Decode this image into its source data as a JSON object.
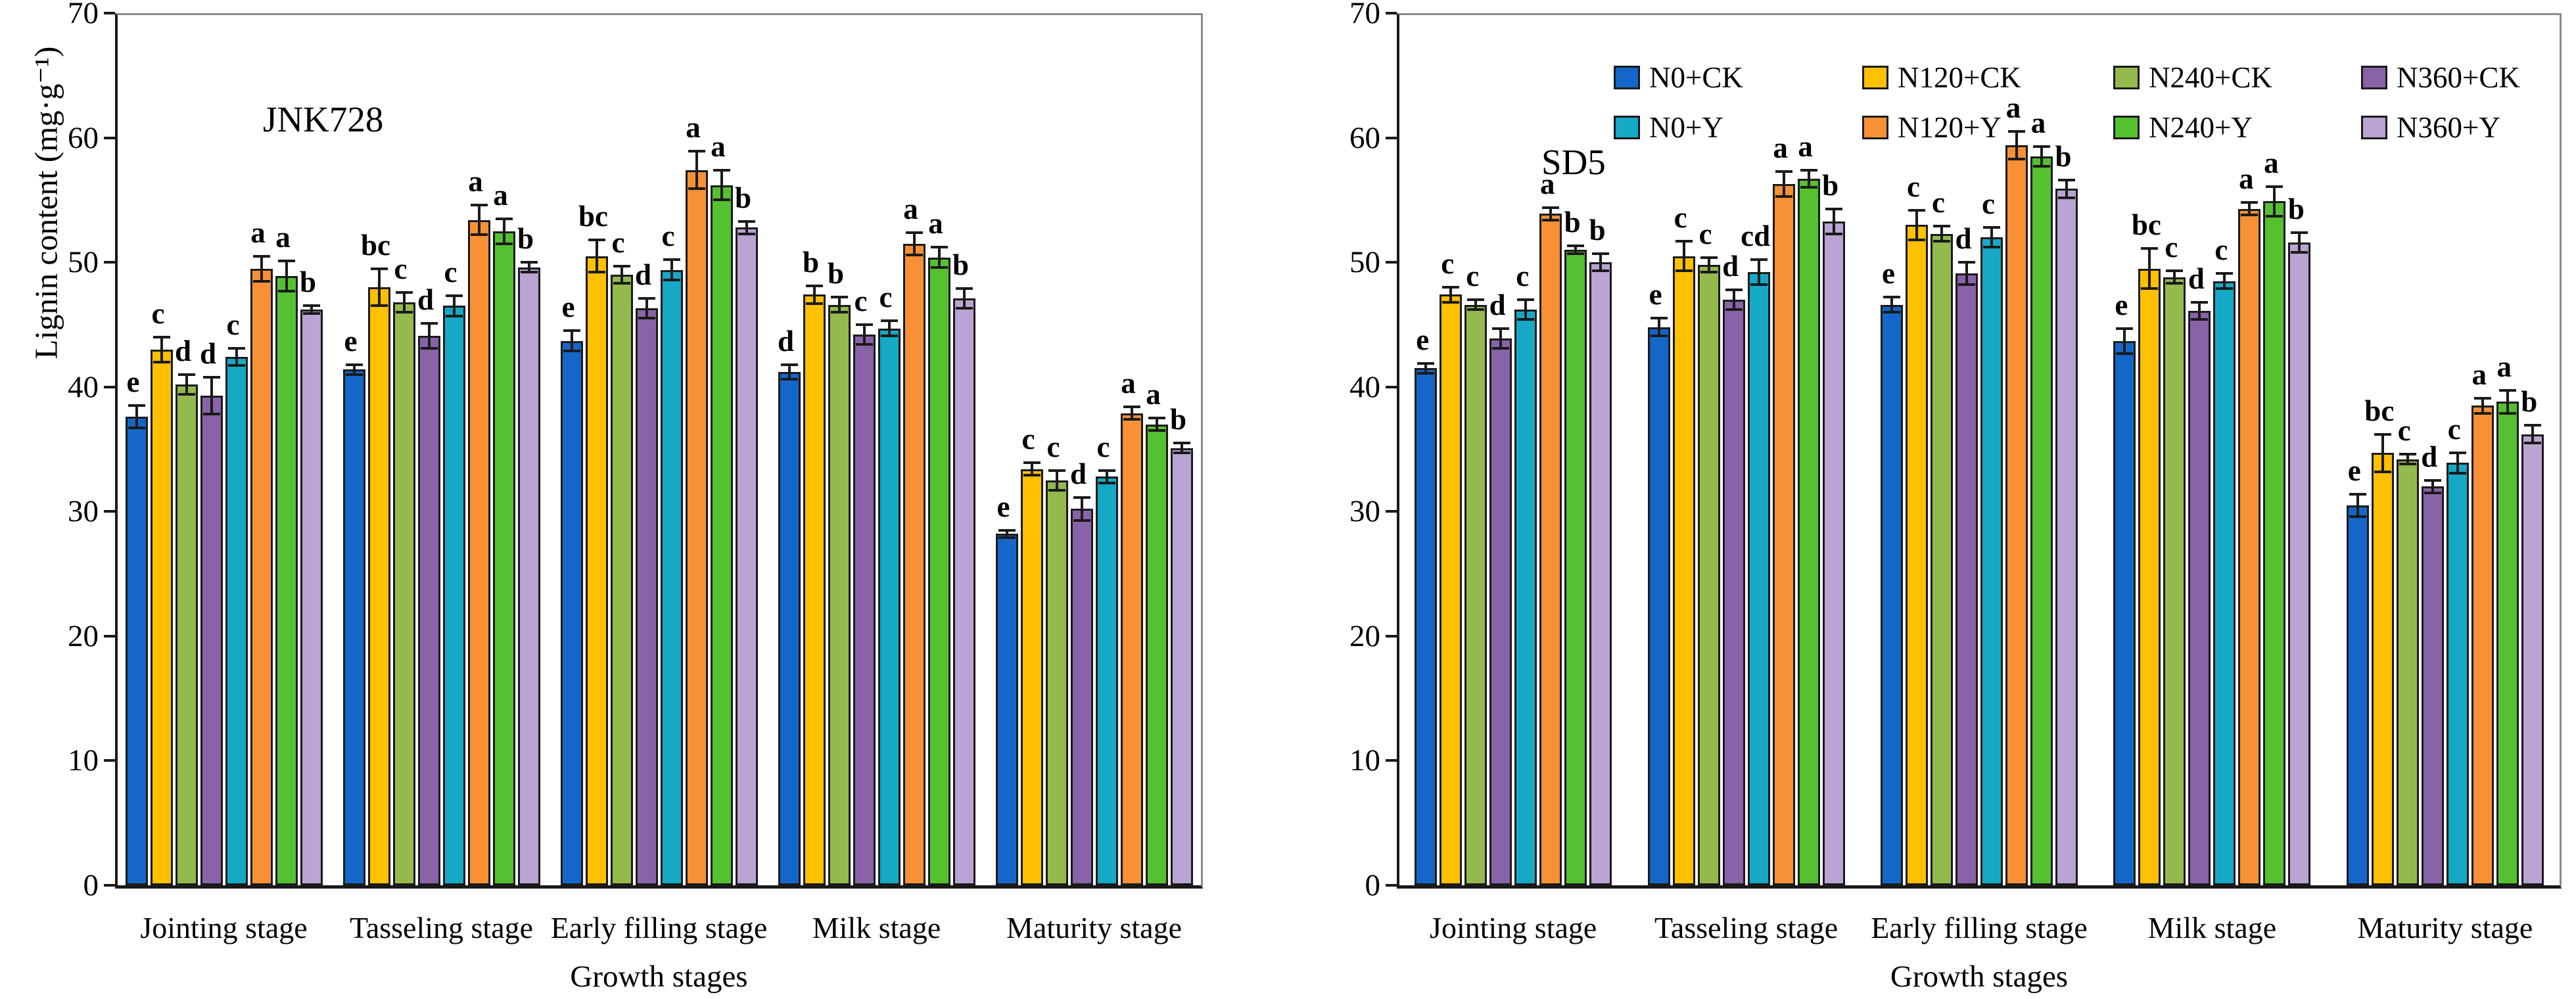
{
  "figure": {
    "background": "#FFFFFF",
    "frame_color": "#8A8A8A",
    "axis_color": "#1A1A1A"
  },
  "series_defs": [
    {
      "name": "N0+CK",
      "color": "#1467C8"
    },
    {
      "name": "N120+CK",
      "color": "#FFC000"
    },
    {
      "name": "N240+CK",
      "color": "#94BA4E"
    },
    {
      "name": "N360+CK",
      "color": "#8963A8"
    },
    {
      "name": "N0+Y",
      "color": "#15A9C6"
    },
    {
      "name": "N120+Y",
      "color": "#F89135"
    },
    {
      "name": "N240+Y",
      "color": "#55C131"
    },
    {
      "name": "N360+Y",
      "color": "#B9A4D4"
    }
  ],
  "chart_data": [
    {
      "type": "bar",
      "title": "JNK728",
      "xlabel": "Growth stages",
      "ylabel": "Lignin content (mg·g⁻¹)",
      "ylim": [
        0,
        70
      ],
      "yticks": [
        0,
        10,
        20,
        30,
        40,
        50,
        60,
        70
      ],
      "legend_position": "none",
      "grid": false,
      "categories": [
        "Jointing stage",
        "Tasseling stage",
        "Early filling stage",
        "Milk stage",
        "Maturity stage"
      ],
      "series": [
        {
          "name": "N0+CK",
          "color": "#1467C8",
          "values": [
            37.6,
            41.4,
            43.7,
            41.2,
            28.2
          ],
          "errors": [
            0.9,
            0.4,
            0.8,
            0.6,
            0.3
          ],
          "letters": [
            "e",
            "e",
            "e",
            "d",
            "e"
          ]
        },
        {
          "name": "N120+CK",
          "color": "#FFC000",
          "values": [
            43.0,
            48.0,
            50.5,
            47.4,
            33.4
          ],
          "errors": [
            1.0,
            1.5,
            1.3,
            0.7,
            0.5
          ],
          "letters": [
            "c",
            "bc",
            "bc",
            "b",
            "c"
          ]
        },
        {
          "name": "N240+CK",
          "color": "#94BA4E",
          "values": [
            40.2,
            46.8,
            49.0,
            46.6,
            32.5
          ],
          "errors": [
            0.8,
            0.8,
            0.7,
            0.6,
            0.8
          ],
          "letters": [
            "d",
            "c",
            "c",
            "b",
            "c"
          ]
        },
        {
          "name": "N360+CK",
          "color": "#8963A8",
          "values": [
            39.3,
            44.1,
            46.3,
            44.2,
            30.2
          ],
          "errors": [
            1.5,
            1.0,
            0.8,
            0.8,
            0.9
          ],
          "letters": [
            "d",
            "d",
            "d",
            "c",
            "d"
          ]
        },
        {
          "name": "N0+Y",
          "color": "#15A9C6",
          "values": [
            42.4,
            46.5,
            49.4,
            44.7,
            32.8
          ],
          "errors": [
            0.7,
            0.8,
            0.8,
            0.6,
            0.5
          ],
          "letters": [
            "c",
            "c",
            "c",
            "c",
            "c"
          ]
        },
        {
          "name": "N120+Y",
          "color": "#F89135",
          "values": [
            49.5,
            53.4,
            57.4,
            51.5,
            37.9
          ],
          "errors": [
            1.0,
            1.2,
            1.5,
            0.9,
            0.5
          ],
          "letters": [
            "a",
            "a",
            "a",
            "a",
            "a"
          ]
        },
        {
          "name": "N240+Y",
          "color": "#55C131",
          "values": [
            48.9,
            52.5,
            56.2,
            50.4,
            37.0
          ],
          "errors": [
            1.2,
            1.0,
            1.2,
            0.8,
            0.5
          ],
          "letters": [
            "a",
            "a",
            "a",
            "a",
            "a"
          ]
        },
        {
          "name": "N360+Y",
          "color": "#B9A4D4",
          "values": [
            46.2,
            49.6,
            52.8,
            47.1,
            35.1
          ],
          "errors": [
            0.3,
            0.4,
            0.5,
            0.8,
            0.4
          ],
          "letters": [
            "b",
            "b",
            "b",
            "b",
            "b"
          ]
        }
      ]
    },
    {
      "type": "bar",
      "title": "SD5",
      "xlabel": "Growth stages",
      "ylabel": "",
      "ylim": [
        0,
        70
      ],
      "yticks": [
        0,
        10,
        20,
        30,
        40,
        50,
        60,
        70
      ],
      "legend_position": "top-inside",
      "grid": false,
      "categories": [
        "Jointing stage",
        "Tasseling stage",
        "Early filling stage",
        "Milk stage",
        "Maturity stage"
      ],
      "series": [
        {
          "name": "N0+CK",
          "color": "#1467C8",
          "values": [
            41.5,
            44.8,
            46.6,
            43.7,
            30.5
          ],
          "errors": [
            0.4,
            0.7,
            0.6,
            1.0,
            0.9
          ],
          "letters": [
            "e",
            "e",
            "e",
            "e",
            "e"
          ]
        },
        {
          "name": "N120+CK",
          "color": "#FFC000",
          "values": [
            47.4,
            50.5,
            53.0,
            49.5,
            34.7
          ],
          "errors": [
            0.6,
            1.2,
            1.2,
            1.6,
            1.5
          ],
          "letters": [
            "c",
            "c",
            "c",
            "bc",
            "bc"
          ]
        },
        {
          "name": "N240+CK",
          "color": "#94BA4E",
          "values": [
            46.6,
            49.8,
            52.3,
            48.8,
            34.2
          ],
          "errors": [
            0.4,
            0.6,
            0.6,
            0.5,
            0.4
          ],
          "letters": [
            "c",
            "c",
            "c",
            "c",
            "c"
          ]
        },
        {
          "name": "N360+CK",
          "color": "#8963A8",
          "values": [
            43.9,
            47.0,
            49.1,
            46.1,
            32.0
          ],
          "errors": [
            0.8,
            0.8,
            0.9,
            0.7,
            0.5
          ],
          "letters": [
            "d",
            "d",
            "d",
            "d",
            "d"
          ]
        },
        {
          "name": "N0+Y",
          "color": "#15A9C6",
          "values": [
            46.2,
            49.2,
            52.0,
            48.5,
            33.9
          ],
          "errors": [
            0.8,
            1.0,
            0.8,
            0.6,
            0.8
          ],
          "letters": [
            "c",
            "cd",
            "c",
            "c",
            "c"
          ]
        },
        {
          "name": "N120+Y",
          "color": "#F89135",
          "values": [
            53.9,
            56.3,
            59.4,
            54.3,
            38.5
          ],
          "errors": [
            0.5,
            1.0,
            1.1,
            0.5,
            0.6
          ],
          "letters": [
            "a",
            "a",
            "a",
            "a",
            "a"
          ]
        },
        {
          "name": "N240+Y",
          "color": "#55C131",
          "values": [
            51.0,
            56.7,
            58.5,
            54.9,
            38.8
          ],
          "errors": [
            0.3,
            0.7,
            0.8,
            1.2,
            0.9
          ],
          "letters": [
            "b",
            "a",
            "a",
            "a",
            "a"
          ]
        },
        {
          "name": "N360+Y",
          "color": "#B9A4D4",
          "values": [
            50.0,
            53.3,
            55.9,
            51.6,
            36.2
          ],
          "errors": [
            0.7,
            1.0,
            0.7,
            0.8,
            0.7
          ],
          "letters": [
            "b",
            "b",
            "b",
            "b",
            "b"
          ]
        }
      ]
    }
  ]
}
